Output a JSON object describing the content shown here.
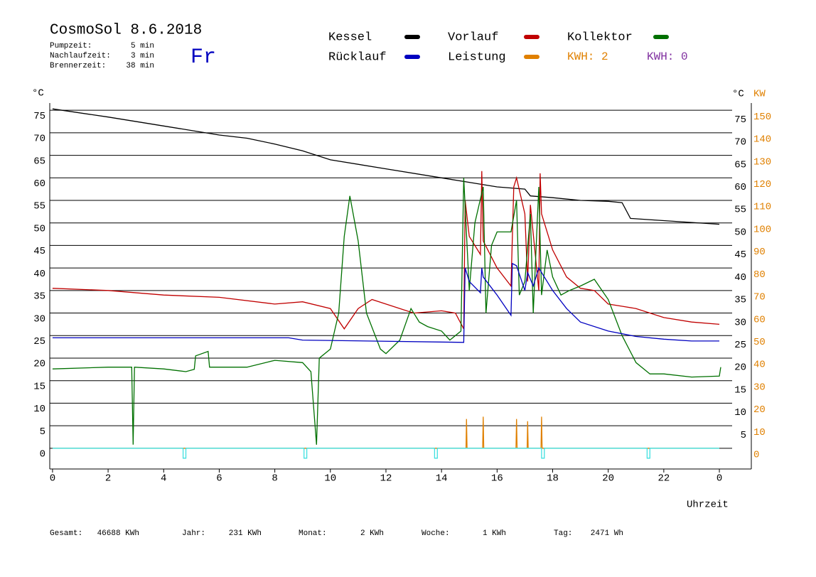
{
  "header": {
    "title": "CosmoSol 8.6.2018",
    "day": "Fr",
    "info": [
      [
        "Pumpzeit:",
        "5 min"
      ],
      [
        "Nachlaufzeit:",
        "3 min"
      ],
      [
        "Brennerzeit:",
        "38 min"
      ]
    ]
  },
  "footer": [
    [
      "Gesamt:",
      "46688 KWh"
    ],
    [
      "Jahr:",
      "231 KWh"
    ],
    [
      "Monat:",
      "2 KWh"
    ],
    [
      "Woche:",
      "1 KWh"
    ],
    [
      "Tag:",
      "2471 Wh"
    ]
  ],
  "chart_data": {
    "type": "line",
    "y_unit": "°C",
    "y2_unit": "KW",
    "x_label": "Uhrzeit",
    "kwh_labels": [
      {
        "text": "KWH: 2",
        "color": "#e08000"
      },
      {
        "text": "KWH: 0",
        "color": "#8030a0"
      }
    ],
    "xlim": [
      -0.1,
      25.15
    ],
    "xticks": [
      0,
      2,
      4,
      6,
      8,
      10,
      12,
      14,
      16,
      18,
      20,
      22,
      {
        "value": 24,
        "label": "0"
      }
    ],
    "ylim": [
      -4.6,
      76.6
    ],
    "yticks": [
      0,
      5,
      10,
      15,
      20,
      25,
      30,
      35,
      40,
      45,
      50,
      55,
      60,
      65,
      70,
      75
    ],
    "yticks_right": [
      5,
      10,
      15,
      20,
      25,
      30,
      35,
      40,
      45,
      50,
      55,
      60,
      65,
      70,
      75
    ],
    "y2lim": [
      -9.2,
      153.2
    ],
    "y2ticks": [
      0,
      10,
      20,
      30,
      40,
      50,
      60,
      70,
      80,
      90,
      100,
      110,
      120,
      130,
      140,
      150
    ],
    "grid": true,
    "series": [
      {
        "name": "Kessel",
        "color": "#000000",
        "x": [
          0,
          2,
          4,
          6,
          7,
          8,
          9,
          10,
          12,
          14,
          15,
          16,
          17,
          17.2,
          18,
          19,
          20,
          20.5,
          20.8,
          22,
          24
        ],
        "values": [
          75.3,
          73.5,
          71.5,
          69.5,
          68.8,
          67.5,
          66,
          64,
          62,
          60,
          59,
          58,
          57.5,
          56,
          55.6,
          55,
          54.8,
          54.5,
          51,
          50.5,
          49.7
        ]
      },
      {
        "name": "Vorlauf",
        "color": "#c00000",
        "x": [
          0,
          2,
          4,
          6,
          8,
          9,
          10,
          10.5,
          11,
          11.5,
          12,
          13,
          14,
          14.5,
          14.8,
          14.85,
          15,
          15.4,
          15.45,
          15.5,
          16,
          16.5,
          16.6,
          16.7,
          17,
          17.1,
          17.2,
          17.5,
          17.55,
          17.6,
          18,
          18.5,
          19,
          19.5,
          20,
          20.5,
          21,
          22,
          23,
          24
        ],
        "values": [
          35.5,
          35,
          34,
          33.5,
          32,
          32.5,
          31,
          26.5,
          31,
          33,
          32,
          30,
          30.5,
          30,
          26.5,
          55,
          47,
          43,
          61.5,
          46,
          40,
          36,
          58,
          60,
          52,
          37,
          54,
          35,
          61,
          52,
          44,
          38,
          35.5,
          35,
          32,
          31.5,
          31,
          29,
          28,
          27.5
        ]
      },
      {
        "name": "Kollektor",
        "color": "#007000",
        "x": [
          0,
          2,
          2.85,
          2.9,
          2.95,
          4,
          4.8,
          5.1,
          5.15,
          5.6,
          5.65,
          7,
          8,
          9,
          9.3,
          9.5,
          9.6,
          10,
          10.3,
          10.5,
          10.7,
          11,
          11.3,
          11.8,
          12,
          12.5,
          12.9,
          13.2,
          13.5,
          14,
          14.3,
          14.7,
          14.8,
          15,
          15.2,
          15.5,
          15.6,
          15.8,
          16,
          16.5,
          16.7,
          16.8,
          17,
          17.2,
          17.3,
          17.5,
          17.6,
          17.8,
          18,
          18.3,
          18.6,
          19,
          19.5,
          20,
          20.5,
          21,
          21.5,
          22,
          23,
          24,
          24.05
        ],
        "values": [
          17.6,
          18,
          18,
          0.8,
          18,
          17.6,
          17,
          17.5,
          20.5,
          21.5,
          18,
          18,
          19.5,
          19,
          17,
          0.8,
          20,
          22,
          30,
          47,
          56,
          46,
          30,
          22,
          21,
          24,
          31,
          28,
          27,
          26,
          24,
          26,
          60,
          35,
          50,
          58,
          30,
          45,
          48,
          48,
          55,
          34,
          37,
          52,
          30,
          58,
          34,
          44,
          38,
          34,
          35,
          36,
          37.5,
          33,
          25,
          19,
          16.5,
          16.5,
          15.8,
          16,
          18
        ]
      },
      {
        "name": "Rücklauf",
        "color": "#0000c0",
        "x": [
          0,
          8.5,
          9,
          14.8,
          14.85,
          15,
          15.4,
          15.45,
          15.5,
          16,
          16.5,
          16.55,
          16.7,
          17,
          17.1,
          17.3,
          17.5,
          17.6,
          18,
          18.5,
          19,
          20,
          21,
          22,
          23,
          24
        ],
        "values": [
          24.5,
          24.5,
          24,
          23.5,
          40,
          37,
          34.5,
          40,
          38,
          34,
          29.5,
          41,
          40.5,
          35,
          39,
          36,
          40,
          39,
          35,
          31,
          28,
          26,
          24.8,
          24.2,
          23.8,
          23.8
        ]
      },
      {
        "name": "Leistung",
        "color": "#e08000",
        "axis": "y2",
        "x": [
          0,
          14.88,
          14.9,
          14.92,
          15.48,
          15.5,
          15.52,
          16.68,
          16.7,
          16.72,
          17.08,
          17.1,
          17.12,
          17.58,
          17.6,
          17.62,
          24
        ],
        "values": [
          0,
          0,
          13,
          0,
          0,
          14,
          0,
          0,
          13,
          0,
          0,
          12,
          0,
          0,
          14,
          0,
          0
        ]
      },
      {
        "color": "#40e0e0",
        "x": [
          0,
          4.7,
          4.7,
          4.8,
          4.8,
          9.05,
          9.05,
          9.15,
          9.15,
          13.75,
          13.75,
          13.85,
          13.85,
          17.6,
          17.6,
          17.7,
          17.7,
          21.4,
          21.4,
          21.5,
          21.5,
          24
        ],
        "values": [
          0,
          0,
          -2.2,
          -2.2,
          0,
          0,
          -2.2,
          -2.2,
          0,
          0,
          -2.2,
          -2.2,
          0,
          0,
          -2.2,
          -2.2,
          0,
          0,
          -2.2,
          -2.2,
          0,
          0
        ]
      }
    ]
  }
}
